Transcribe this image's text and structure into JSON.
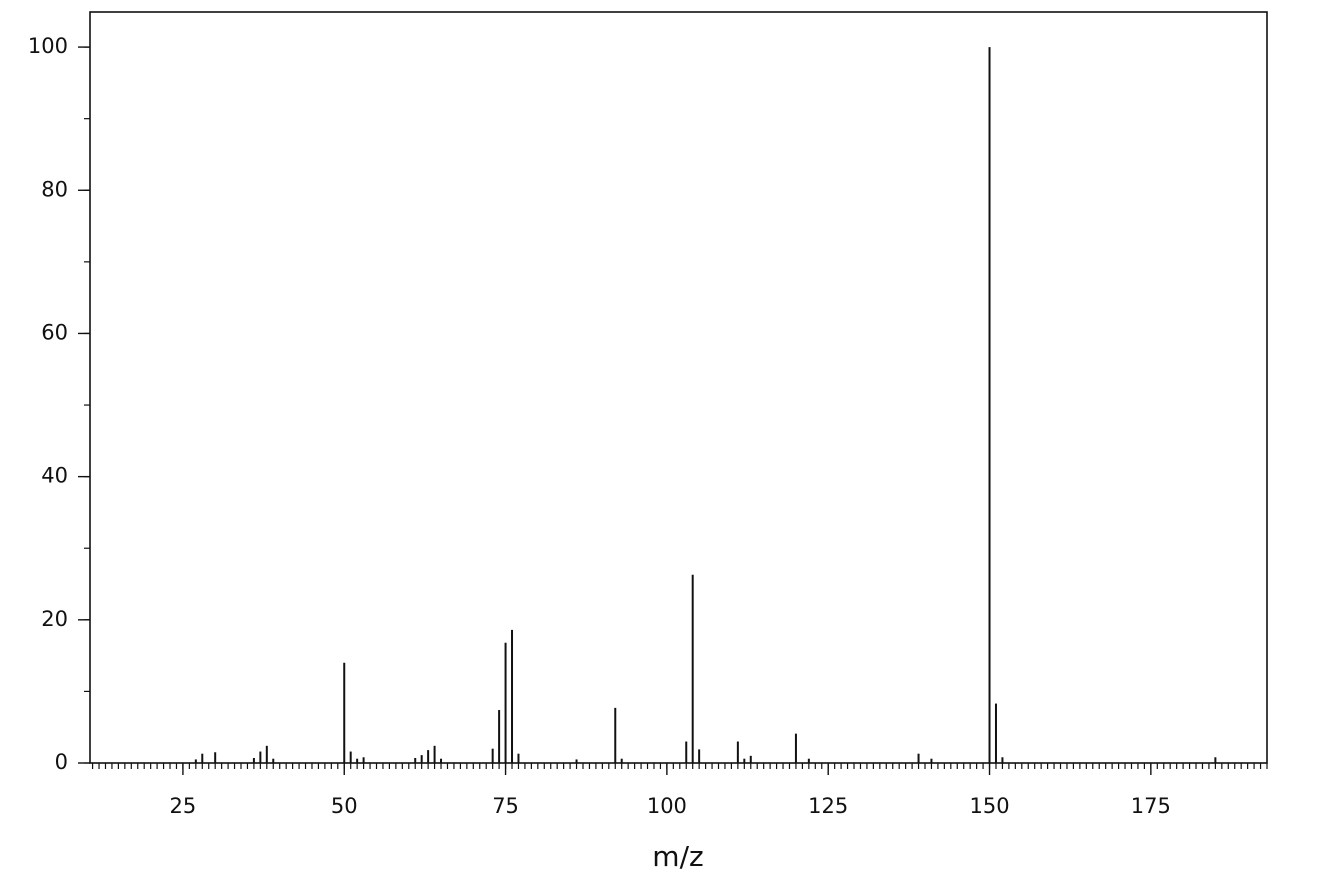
{
  "chart_data": {
    "type": "stem",
    "x_label": "m/z",
    "x": [
      27,
      28,
      30,
      36,
      37,
      38,
      39,
      50,
      51,
      52,
      53,
      61,
      62,
      63,
      64,
      65,
      73,
      74,
      75,
      76,
      77,
      86,
      92,
      93,
      103,
      104,
      105,
      111,
      112,
      113,
      120,
      122,
      139,
      141,
      150,
      151,
      152,
      185
    ],
    "values": [
      0.5,
      1.3,
      1.5,
      0.7,
      1.6,
      2.4,
      0.6,
      14,
      1.6,
      0.6,
      0.8,
      0.7,
      1.1,
      1.8,
      2.4,
      0.6,
      2.0,
      7.4,
      16.8,
      18.6,
      1.3,
      0.5,
      7.7,
      0.6,
      3.0,
      26.3,
      1.9,
      3.0,
      0.6,
      1.0,
      4.1,
      0.6,
      1.3,
      0.6,
      100,
      8.3,
      0.8,
      0.8
    ],
    "color": "#111111",
    "xlim": [
      10.6,
      193
    ],
    "ylim": [
      0,
      104.9
    ],
    "xticks": [
      25,
      50,
      75,
      100,
      125,
      150,
      175
    ],
    "yticks": [
      0,
      20,
      40,
      60,
      80,
      100
    ],
    "x_minor_tick_step": 1,
    "y_minor_tick_step": 10
  }
}
